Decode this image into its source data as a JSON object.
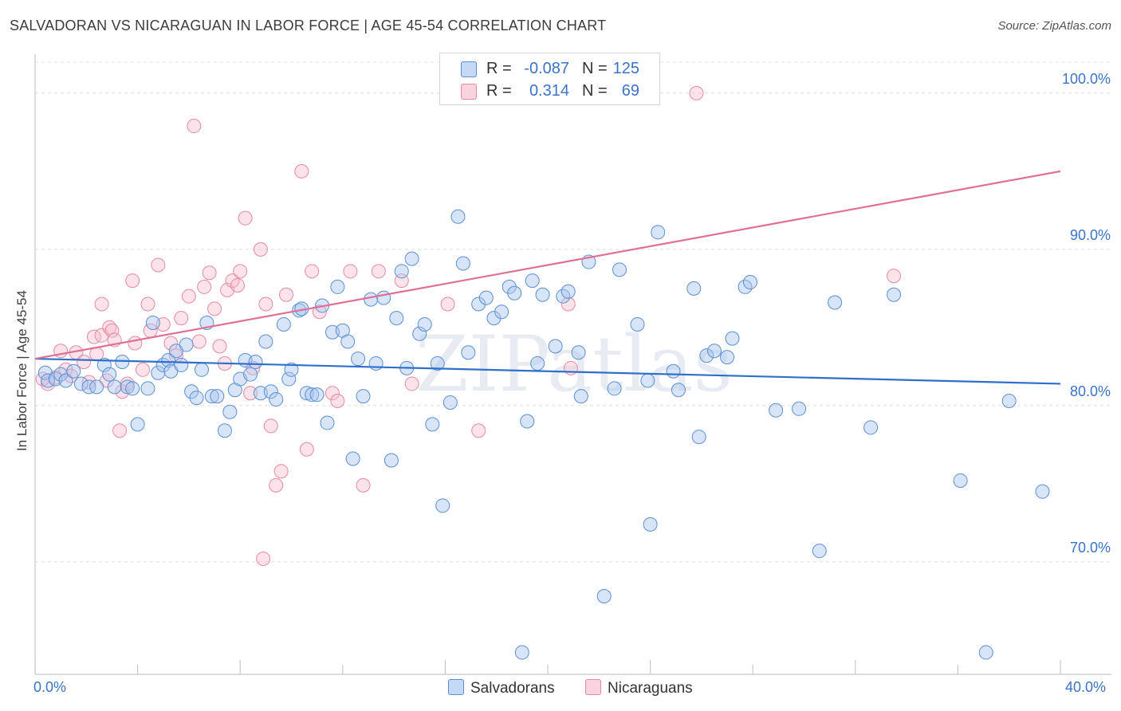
{
  "title": "SALVADORAN VS NICARAGUAN IN LABOR FORCE | AGE 45-54 CORRELATION CHART",
  "source": "Source: ZipAtlas.com",
  "watermark": "ZIPatlas",
  "legend": {
    "rows": [
      {
        "r_label": "R =",
        "r_value": "-0.087",
        "n_label": "N =",
        "n_value": "125",
        "color": "#a9c6ef"
      },
      {
        "r_label": "R =",
        "r_value": "0.314",
        "n_label": "N =",
        "n_value": "69",
        "color": "#f4b8c9"
      }
    ]
  },
  "bottom_legend": [
    {
      "label": "Salvadorans",
      "color": "#a9c6ef"
    },
    {
      "label": "Nicaraguans",
      "color": "#f4b8c9"
    }
  ],
  "chart_data": {
    "type": "scatter",
    "title": "SALVADORAN VS NICARAGUAN IN LABOR FORCE | AGE 45-54 CORRELATION CHART",
    "xlabel": "",
    "ylabel": "In Labor Force | Age 45-54",
    "xlim": [
      0,
      40
    ],
    "ylim": [
      62.8,
      102.8
    ],
    "x_tick_labels": [
      "0.0%",
      "40.0%"
    ],
    "y_ticks": [
      70,
      80,
      90,
      100
    ],
    "y_tick_labels": [
      "70.0%",
      "80.0%",
      "90.0%",
      "100.0%"
    ],
    "grid": true,
    "legend_position": "top-center",
    "series": [
      {
        "name": "Salvadorans",
        "color": "#a9c6ef",
        "stroke": "#5b8fd6",
        "trend_color": "#2f6fcc",
        "trend": {
          "x": [
            0,
            40
          ],
          "y": [
            83.0,
            81.4
          ]
        },
        "points": [
          [
            0.4,
            82.1
          ],
          [
            0.5,
            81.6
          ],
          [
            0.8,
            81.7
          ],
          [
            1.0,
            82.0
          ],
          [
            1.2,
            81.6
          ],
          [
            1.5,
            82.2
          ],
          [
            1.8,
            81.4
          ],
          [
            2.1,
            81.2
          ],
          [
            2.4,
            81.2
          ],
          [
            2.7,
            82.6
          ],
          [
            2.9,
            82.0
          ],
          [
            3.1,
            81.2
          ],
          [
            3.4,
            82.8
          ],
          [
            3.6,
            81.2
          ],
          [
            3.8,
            81.1
          ],
          [
            4.0,
            78.8
          ],
          [
            4.4,
            81.1
          ],
          [
            4.6,
            85.3
          ],
          [
            4.8,
            82.1
          ],
          [
            5.0,
            82.6
          ],
          [
            5.2,
            82.9
          ],
          [
            5.3,
            82.2
          ],
          [
            5.5,
            83.5
          ],
          [
            5.7,
            82.6
          ],
          [
            5.9,
            83.9
          ],
          [
            6.1,
            80.9
          ],
          [
            6.3,
            80.5
          ],
          [
            6.5,
            82.3
          ],
          [
            6.7,
            85.3
          ],
          [
            6.9,
            80.6
          ],
          [
            7.1,
            80.6
          ],
          [
            7.4,
            78.4
          ],
          [
            7.6,
            79.6
          ],
          [
            7.8,
            81.0
          ],
          [
            8.0,
            81.7
          ],
          [
            8.2,
            82.9
          ],
          [
            8.4,
            82.0
          ],
          [
            8.6,
            82.8
          ],
          [
            8.8,
            80.8
          ],
          [
            9.0,
            84.1
          ],
          [
            9.2,
            80.9
          ],
          [
            9.4,
            80.4
          ],
          [
            9.7,
            85.2
          ],
          [
            9.9,
            81.7
          ],
          [
            10.0,
            82.3
          ],
          [
            10.3,
            86.1
          ],
          [
            10.4,
            86.2
          ],
          [
            10.6,
            80.8
          ],
          [
            10.8,
            80.7
          ],
          [
            11.0,
            80.7
          ],
          [
            11.2,
            86.4
          ],
          [
            11.4,
            78.9
          ],
          [
            11.6,
            84.7
          ],
          [
            11.8,
            87.6
          ],
          [
            12.0,
            84.8
          ],
          [
            12.2,
            84.1
          ],
          [
            12.4,
            76.6
          ],
          [
            12.6,
            83.0
          ],
          [
            12.8,
            80.6
          ],
          [
            13.1,
            86.8
          ],
          [
            13.3,
            82.7
          ],
          [
            13.6,
            86.9
          ],
          [
            13.9,
            76.5
          ],
          [
            14.1,
            85.6
          ],
          [
            14.3,
            88.6
          ],
          [
            14.5,
            82.4
          ],
          [
            14.7,
            89.4
          ],
          [
            15.0,
            84.6
          ],
          [
            15.2,
            85.2
          ],
          [
            15.5,
            78.8
          ],
          [
            15.7,
            82.7
          ],
          [
            15.9,
            73.6
          ],
          [
            16.2,
            80.2
          ],
          [
            16.5,
            92.1
          ],
          [
            16.7,
            89.1
          ],
          [
            16.9,
            83.4
          ],
          [
            17.3,
            86.5
          ],
          [
            17.6,
            86.9
          ],
          [
            17.9,
            85.6
          ],
          [
            18.2,
            86.0
          ],
          [
            18.5,
            87.6
          ],
          [
            18.7,
            87.2
          ],
          [
            19.0,
            64.2
          ],
          [
            19.2,
            79.0
          ],
          [
            19.4,
            88.0
          ],
          [
            19.6,
            82.7
          ],
          [
            19.8,
            87.1
          ],
          [
            20.3,
            83.8
          ],
          [
            20.6,
            87.0
          ],
          [
            20.8,
            87.3
          ],
          [
            21.2,
            83.4
          ],
          [
            21.3,
            80.6
          ],
          [
            21.6,
            89.2
          ],
          [
            22.2,
            67.8
          ],
          [
            22.6,
            81.1
          ],
          [
            22.8,
            88.7
          ],
          [
            23.5,
            85.2
          ],
          [
            23.9,
            81.6
          ],
          [
            24.0,
            72.4
          ],
          [
            24.3,
            91.1
          ],
          [
            24.9,
            82.2
          ],
          [
            25.1,
            81.0
          ],
          [
            25.7,
            87.5
          ],
          [
            25.9,
            78.0
          ],
          [
            26.2,
            83.2
          ],
          [
            26.5,
            83.5
          ],
          [
            27.0,
            83.1
          ],
          [
            27.2,
            84.3
          ],
          [
            27.7,
            87.6
          ],
          [
            27.9,
            87.9
          ],
          [
            28.9,
            79.7
          ],
          [
            29.8,
            79.8
          ],
          [
            30.6,
            70.7
          ],
          [
            31.2,
            86.6
          ],
          [
            32.6,
            78.6
          ],
          [
            33.5,
            87.1
          ],
          [
            36.1,
            75.2
          ],
          [
            37.1,
            64.2
          ],
          [
            38.0,
            80.3
          ],
          [
            39.3,
            74.5
          ]
        ]
      },
      {
        "name": "Nicaraguans",
        "color": "#f4b8c9",
        "stroke": "#e58aa5",
        "trend_color": "#e07097",
        "trend": {
          "x": [
            0,
            40
          ],
          "y": [
            83.0,
            95.0
          ]
        },
        "points": [
          [
            0.3,
            81.7
          ],
          [
            0.5,
            81.4
          ],
          [
            0.8,
            81.8
          ],
          [
            1.0,
            83.5
          ],
          [
            1.2,
            82.3
          ],
          [
            1.4,
            81.9
          ],
          [
            1.6,
            83.4
          ],
          [
            1.9,
            82.8
          ],
          [
            2.1,
            81.5
          ],
          [
            2.3,
            84.4
          ],
          [
            2.4,
            83.3
          ],
          [
            2.6,
            84.5
          ],
          [
            2.6,
            86.5
          ],
          [
            2.8,
            81.6
          ],
          [
            2.9,
            85.0
          ],
          [
            3.0,
            84.8
          ],
          [
            3.1,
            84.2
          ],
          [
            3.3,
            78.4
          ],
          [
            3.4,
            80.9
          ],
          [
            3.6,
            81.4
          ],
          [
            3.8,
            88.0
          ],
          [
            3.9,
            84.0
          ],
          [
            4.2,
            82.3
          ],
          [
            4.4,
            86.5
          ],
          [
            4.5,
            84.8
          ],
          [
            4.8,
            89.0
          ],
          [
            5.0,
            85.2
          ],
          [
            5.3,
            84.0
          ],
          [
            5.5,
            83.2
          ],
          [
            5.7,
            85.6
          ],
          [
            6.0,
            87.0
          ],
          [
            6.2,
            97.9
          ],
          [
            6.4,
            84.1
          ],
          [
            6.6,
            87.6
          ],
          [
            6.8,
            88.5
          ],
          [
            7.0,
            86.2
          ],
          [
            7.2,
            83.8
          ],
          [
            7.4,
            82.7
          ],
          [
            7.5,
            87.4
          ],
          [
            7.7,
            88.0
          ],
          [
            7.9,
            87.7
          ],
          [
            8.0,
            88.6
          ],
          [
            8.2,
            92.0
          ],
          [
            8.4,
            80.8
          ],
          [
            8.5,
            82.4
          ],
          [
            8.8,
            90.0
          ],
          [
            8.9,
            70.2
          ],
          [
            9.0,
            86.5
          ],
          [
            9.2,
            78.7
          ],
          [
            9.4,
            74.9
          ],
          [
            9.6,
            75.8
          ],
          [
            9.8,
            87.1
          ],
          [
            10.4,
            95.0
          ],
          [
            10.6,
            77.2
          ],
          [
            10.8,
            88.6
          ],
          [
            11.1,
            86.0
          ],
          [
            11.6,
            80.8
          ],
          [
            11.8,
            80.3
          ],
          [
            12.3,
            88.6
          ],
          [
            12.8,
            74.9
          ],
          [
            13.4,
            88.6
          ],
          [
            14.3,
            88.0
          ],
          [
            14.7,
            81.4
          ],
          [
            16.1,
            86.5
          ],
          [
            17.3,
            78.4
          ],
          [
            20.8,
            86.5
          ],
          [
            20.9,
            82.4
          ],
          [
            25.8,
            100.0
          ],
          [
            33.5,
            88.3
          ]
        ]
      }
    ]
  }
}
